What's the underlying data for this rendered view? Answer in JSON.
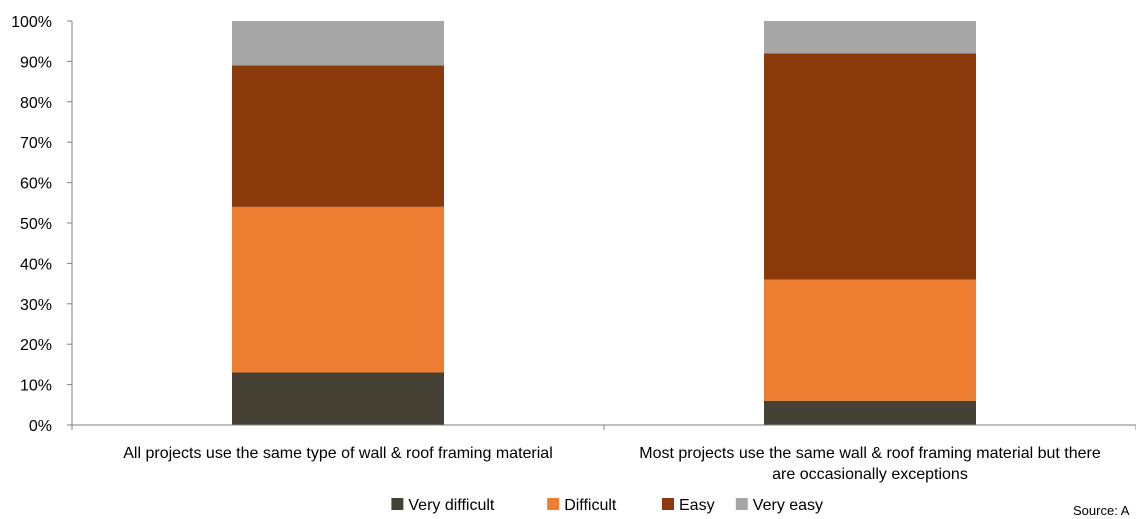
{
  "chart_data": {
    "type": "bar",
    "stacked": true,
    "categories": [
      [
        "All projects use the same type of wall & roof framing material"
      ],
      [
        "Most projects use the same wall & roof framing material but there",
        "are occasionally exceptions"
      ]
    ],
    "series": [
      {
        "name": "Very difficult",
        "color": "#464135",
        "values": [
          13,
          6
        ]
      },
      {
        "name": "Difficult",
        "color": "#ED7D31",
        "values": [
          41,
          30
        ]
      },
      {
        "name": "Easy",
        "color": "#8B3A0B",
        "values": [
          35,
          56
        ]
      },
      {
        "name": "Very easy",
        "color": "#A6A6A6",
        "values": [
          11,
          8
        ]
      }
    ],
    "y_ticks": [
      "0%",
      "10%",
      "20%",
      "30%",
      "40%",
      "50%",
      "60%",
      "70%",
      "80%",
      "90%",
      "100%"
    ],
    "ylim": [
      0,
      100
    ],
    "grid": false,
    "legend_position": "bottom",
    "source_text": "Source: A"
  }
}
